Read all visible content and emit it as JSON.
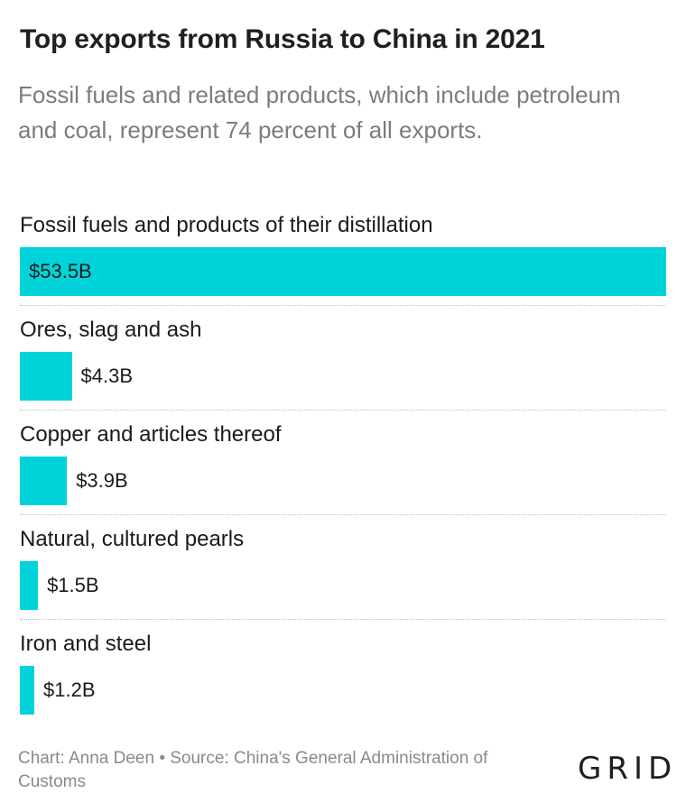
{
  "header": {
    "title": "Top exports from Russia to China in 2021",
    "subtitle": "Fossil fuels and related products, which include petroleum and coal, represent 74 percent of all exports."
  },
  "footer": {
    "credit": "Chart: Anna Deen • Source: China's General Administration of Customs",
    "logo": "GRID"
  },
  "colors": {
    "bar": "#00d4da"
  },
  "chart_data": {
    "type": "bar",
    "orientation": "horizontal",
    "title": "Top exports from Russia to China in 2021",
    "subtitle": "Fossil fuels and related products, which include petroleum and coal, represent 74 percent of all exports.",
    "categories": [
      "Fossil fuels and products of their distillation",
      "Ores, slag and ash",
      "Copper and articles thereof",
      "Natural, cultured pearls",
      "Iron and steel"
    ],
    "values": [
      53.5,
      4.3,
      3.9,
      1.5,
      1.2
    ],
    "value_labels": [
      "$53.5B",
      "$4.3B",
      "$3.9B",
      "$1.5B",
      "$1.2B"
    ],
    "xlim": [
      0,
      53.5
    ],
    "grid": false,
    "legend": "none"
  }
}
